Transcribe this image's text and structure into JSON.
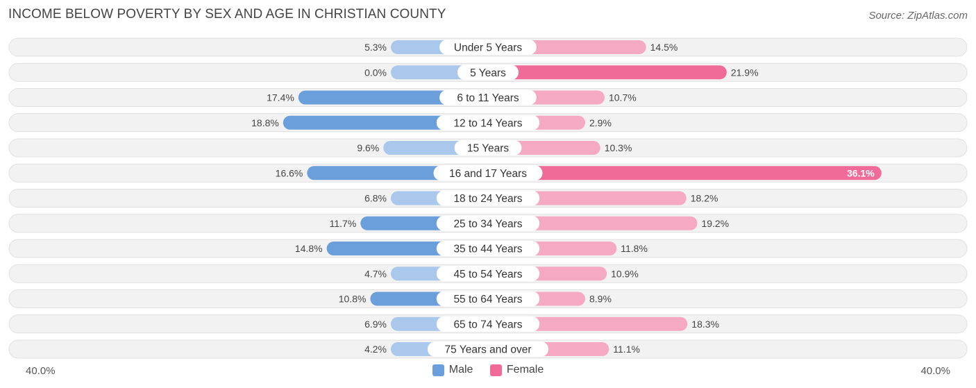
{
  "title": "INCOME BELOW POVERTY BY SEX AND AGE IN CHRISTIAN COUNTY",
  "source": "Source: ZipAtlas.com",
  "legend": {
    "male": "Male",
    "female": "Female"
  },
  "axis": {
    "left_label": "40.0%",
    "right_label": "40.0%"
  },
  "colors": {
    "male_strong": "#6a9fdb",
    "male_light": "#a9c8ec",
    "female_strong": "#f06b97",
    "female_light": "#f6a9c3",
    "row_bg": "#f2f2f2",
    "row_border": "#e0e0e0"
  },
  "chart_data": {
    "type": "bar",
    "orientation": "horizontal-diverging",
    "title": "INCOME BELOW POVERTY BY SEX AND AGE IN CHRISTIAN COUNTY",
    "xlim": [
      -40,
      40
    ],
    "categories": [
      "Under 5 Years",
      "5 Years",
      "6 to 11 Years",
      "12 to 14 Years",
      "15 Years",
      "16 and 17 Years",
      "18 to 24 Years",
      "25 to 34 Years",
      "35 to 44 Years",
      "45 to 54 Years",
      "55 to 64 Years",
      "65 to 74 Years",
      "75 Years and over"
    ],
    "series": [
      {
        "name": "Male",
        "values": [
          5.3,
          0.0,
          17.4,
          18.8,
          9.6,
          16.6,
          6.8,
          11.7,
          14.8,
          4.7,
          10.8,
          6.9,
          4.2
        ],
        "labels": [
          "5.3%",
          "0.0%",
          "17.4%",
          "18.8%",
          "9.6%",
          "16.6%",
          "6.8%",
          "11.7%",
          "14.8%",
          "4.7%",
          "10.8%",
          "6.9%",
          "4.2%"
        ]
      },
      {
        "name": "Female",
        "values": [
          14.5,
          21.9,
          10.7,
          2.9,
          10.3,
          36.1,
          18.2,
          19.2,
          11.8,
          10.9,
          8.9,
          18.3,
          11.1
        ],
        "labels": [
          "14.5%",
          "21.9%",
          "10.7%",
          "2.9%",
          "10.3%",
          "36.1%",
          "18.2%",
          "19.2%",
          "11.8%",
          "10.9%",
          "8.9%",
          "18.3%",
          "11.1%"
        ]
      }
    ]
  }
}
